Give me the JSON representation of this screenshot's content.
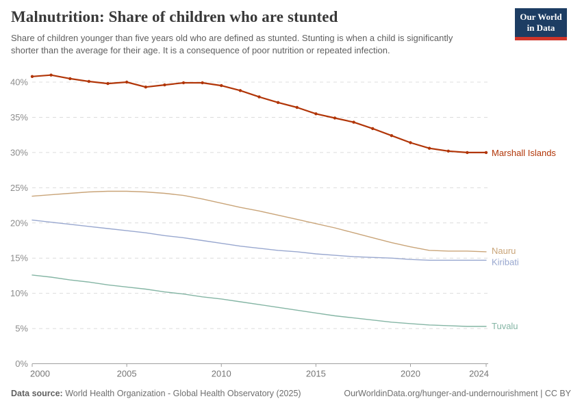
{
  "header": {
    "title": "Malnutrition: Share of children who are stunted",
    "subtitle_line1": "Share of children younger than five years old who are defined as stunted. Stunting is when a child is significantly",
    "subtitle_line2": "shorter than the average for their age. It is a consequence of poor nutrition or repeated infection.",
    "logo": {
      "line1": "Our World",
      "line2": "in Data",
      "bg_color": "#1d3d63",
      "accent_color": "#cf3529"
    }
  },
  "chart_data": {
    "type": "line",
    "title": "Malnutrition: Share of children who are stunted",
    "xlabel": "",
    "ylabel": "",
    "x": [
      2000,
      2001,
      2002,
      2003,
      2004,
      2005,
      2006,
      2007,
      2008,
      2009,
      2010,
      2011,
      2012,
      2013,
      2014,
      2015,
      2016,
      2017,
      2018,
      2019,
      2020,
      2021,
      2022,
      2023,
      2024
    ],
    "x_tick_labels": [
      "2000",
      "2005",
      "2010",
      "2015",
      "2020",
      "2024"
    ],
    "x_ticks": [
      2000,
      2005,
      2010,
      2015,
      2020,
      2024
    ],
    "y_ticks": [
      0,
      5,
      10,
      15,
      20,
      25,
      30,
      35,
      40
    ],
    "y_tick_suffix": "%",
    "ylim": [
      0,
      40
    ],
    "xlim": [
      2000,
      2024
    ],
    "grid": "horizontal-dashed",
    "legend_position": "end-of-line-labels",
    "series": [
      {
        "name": "Nauru",
        "color": "#C9A478",
        "line_width": 1.4,
        "markers": false,
        "label_dy": -1,
        "values": [
          23.8,
          24.0,
          24.2,
          24.4,
          24.5,
          24.5,
          24.4,
          24.2,
          23.9,
          23.4,
          22.8,
          22.2,
          21.7,
          21.1,
          20.5,
          19.9,
          19.3,
          18.6,
          17.9,
          17.2,
          16.6,
          16.1,
          16.0,
          16.0,
          15.9
        ]
      },
      {
        "name": "Kiribati",
        "color": "#98A7CF",
        "line_width": 1.4,
        "markers": false,
        "label_dy": 3,
        "values": [
          20.4,
          20.1,
          19.8,
          19.5,
          19.2,
          18.9,
          18.6,
          18.2,
          17.9,
          17.5,
          17.1,
          16.7,
          16.4,
          16.1,
          15.9,
          15.6,
          15.4,
          15.2,
          15.1,
          15.0,
          14.8,
          14.7,
          14.7,
          14.7,
          14.7
        ]
      },
      {
        "name": "Tuvalu",
        "color": "#84B5A4",
        "line_width": 1.4,
        "markers": false,
        "label_dy": 0,
        "values": [
          12.6,
          12.3,
          11.9,
          11.6,
          11.2,
          10.9,
          10.6,
          10.2,
          9.9,
          9.5,
          9.2,
          8.8,
          8.4,
          8.0,
          7.6,
          7.2,
          6.8,
          6.5,
          6.2,
          5.9,
          5.7,
          5.5,
          5.4,
          5.3,
          5.3
        ]
      },
      {
        "name": "Marshall Islands",
        "color": "#B13507",
        "line_width": 2.2,
        "markers": true,
        "label_dy": 1,
        "values": [
          40.8,
          41.0,
          40.5,
          40.1,
          39.8,
          40.0,
          39.3,
          39.6,
          39.9,
          39.9,
          39.5,
          38.8,
          37.9,
          37.1,
          36.4,
          35.5,
          34.9,
          34.3,
          33.4,
          32.4,
          31.4,
          30.6,
          30.2,
          30.0,
          30.0
        ]
      }
    ],
    "axis_colors": {
      "grid": "#dcdcdc",
      "axis_line": "#9e9e9e",
      "y_tick_label": "#8c8c8c",
      "x_tick_label": "#757575"
    }
  },
  "footer": {
    "source_label": "Data source:",
    "source_text": " World Health Organization - Global Health Observatory (2025)",
    "rights": "OurWorldinData.org/hunger-and-undernourishment | CC BY"
  }
}
